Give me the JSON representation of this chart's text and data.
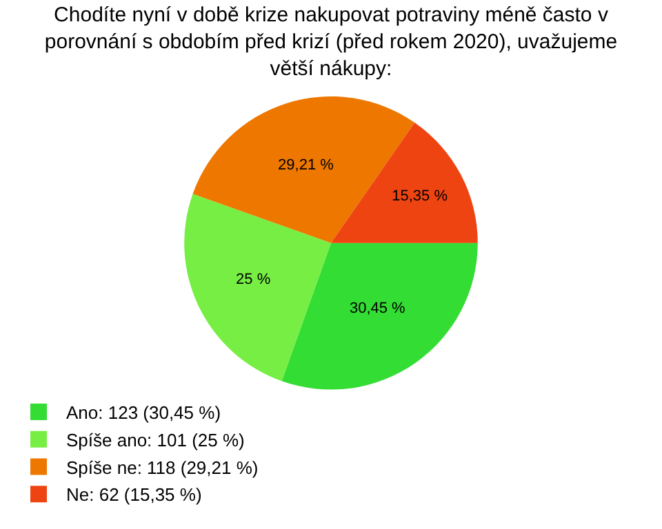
{
  "chart_data": {
    "type": "pie",
    "title": "Chodíte nyní v době krize nakupovat potraviny méně často v porovnání s obdobím před krizí (před rokem 2020), uvažujeme větší nákupy:",
    "categories": [
      "Ano: 123 (30,45 %)",
      "Spíše ano: 101 (25 %)",
      "Spíše ne: 118 (29,21 %)",
      "Ne: 62 (15,35 %)"
    ],
    "values": [
      30.45,
      25,
      29.21,
      15.35
    ],
    "colors": [
      "#33dd33",
      "#77ee44",
      "#ee7700",
      "#ee4411"
    ],
    "value_labels": [
      "30,45 %",
      "25 %",
      "29,21 %",
      "15,35 %"
    ],
    "legend": "bottom left"
  }
}
